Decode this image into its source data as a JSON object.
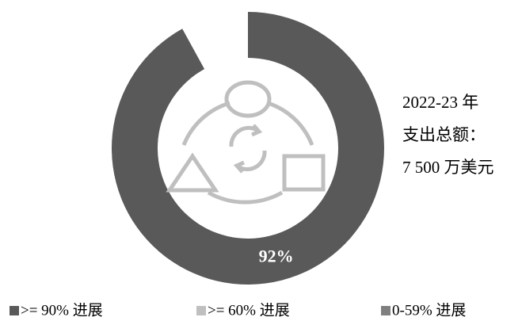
{
  "chart_data": {
    "type": "donut",
    "categories": [
      ">= 90% 进展",
      ">= 60% 进展",
      "0-59% 进展"
    ],
    "values": [
      92,
      8,
      0
    ],
    "value_labels": [
      "92%",
      null,
      null
    ],
    "colors": [
      "#595959",
      "#ffffff",
      "#ffffff"
    ],
    "legend_colors": [
      "#595959",
      "#bfbfbf",
      "#7f7f7f"
    ],
    "annotation": [
      "2022-23 年",
      "支出总额：",
      "7 500 万美元"
    ]
  }
}
